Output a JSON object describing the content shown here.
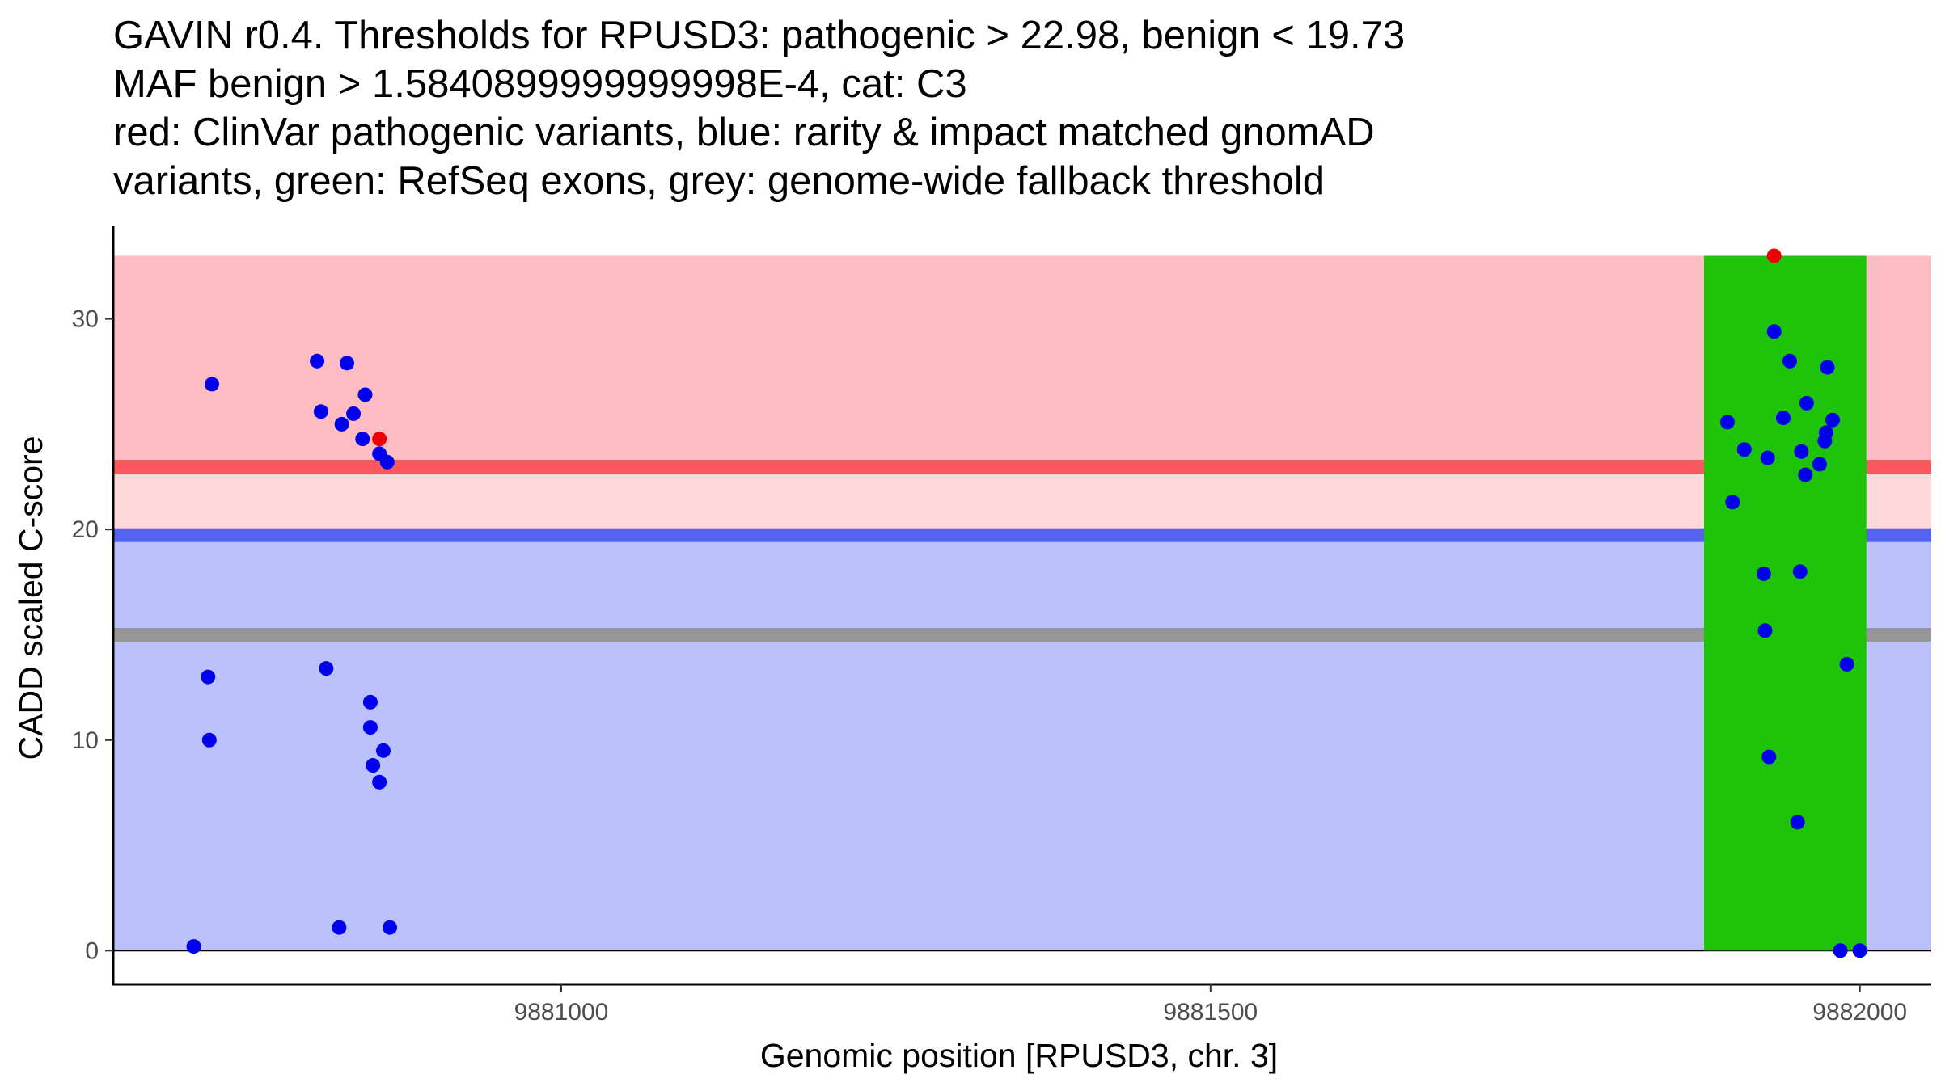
{
  "chart_data": {
    "type": "scatter",
    "title_lines": [
      "GAVIN r0.4. Thresholds for RPUSD3: pathogenic > 22.98, benign < 19.73",
      "MAF benign > 1.5840899999999998E-4, cat: C3",
      "red: ClinVar pathogenic variants, blue: rarity & impact matched gnomAD",
      "variants, green: RefSeq exons, grey: genome-wide fallback threshold"
    ],
    "xlabel": "Genomic position [RPUSD3, chr. 3]",
    "ylabel": "CADD scaled C-score",
    "xlim": [
      9880655,
      9882055
    ],
    "ylim": [
      -1.6,
      34.4
    ],
    "x_ticks": [
      {
        "value": 9881000,
        "label": "9881000"
      },
      {
        "value": 9881500,
        "label": "9881500"
      },
      {
        "value": 9882000,
        "label": "9882000"
      }
    ],
    "y_ticks": [
      {
        "value": 0,
        "label": "0"
      },
      {
        "value": 10,
        "label": "10"
      },
      {
        "value": 20,
        "label": "20"
      },
      {
        "value": 30,
        "label": "30"
      }
    ],
    "thresholds": {
      "pathogenic": 22.98,
      "benign": 19.73,
      "fallback": 15.0
    },
    "band_top": 33.0,
    "exons": [
      {
        "start": 9881880,
        "end": 9882005
      }
    ],
    "colors": {
      "pathogenic_region": "#fdbcc2",
      "middle_region": "#fed7db",
      "benign_region": "#bbc1fb",
      "pathogenic_line": "#f8575e",
      "benign_line": "#5563f0",
      "fallback_line": "#969696",
      "exon": "#1ec40a",
      "pathogenic_point": "#ee0000",
      "gnomad_point": "#0000ee"
    },
    "series": [
      {
        "name": "ClinVar pathogenic variants",
        "color": "#ee0000",
        "points": [
          {
            "x": 9880860,
            "y": 24.3
          },
          {
            "x": 9881934,
            "y": 33.0
          }
        ]
      },
      {
        "name": "rarity & impact matched gnomAD variants",
        "color": "#0000ee",
        "points": [
          {
            "x": 9880717,
            "y": 0.2
          },
          {
            "x": 9880728,
            "y": 13.0
          },
          {
            "x": 9880729,
            "y": 10.0
          },
          {
            "x": 9880731,
            "y": 26.9
          },
          {
            "x": 9880812,
            "y": 28.0
          },
          {
            "x": 9880815,
            "y": 25.6
          },
          {
            "x": 9880819,
            "y": 13.4
          },
          {
            "x": 9880829,
            "y": 1.1
          },
          {
            "x": 9880831,
            "y": 25.0
          },
          {
            "x": 9880835,
            "y": 27.9
          },
          {
            "x": 9880840,
            "y": 25.5
          },
          {
            "x": 9880847,
            "y": 24.3
          },
          {
            "x": 9880849,
            "y": 26.4
          },
          {
            "x": 9880853,
            "y": 11.8
          },
          {
            "x": 9880853,
            "y": 10.6
          },
          {
            "x": 9880855,
            "y": 8.8
          },
          {
            "x": 9880860,
            "y": 8.0
          },
          {
            "x": 9880860,
            "y": 23.6
          },
          {
            "x": 9880863,
            "y": 9.5
          },
          {
            "x": 9880866,
            "y": 23.2
          },
          {
            "x": 9880868,
            "y": 1.1
          },
          {
            "x": 9881898,
            "y": 25.1
          },
          {
            "x": 9881902,
            "y": 21.3
          },
          {
            "x": 9881911,
            "y": 23.8
          },
          {
            "x": 9881926,
            "y": 17.9
          },
          {
            "x": 9881927,
            "y": 15.2
          },
          {
            "x": 9881929,
            "y": 23.4
          },
          {
            "x": 9881930,
            "y": 9.2
          },
          {
            "x": 9881934,
            "y": 29.4
          },
          {
            "x": 9881941,
            "y": 25.3
          },
          {
            "x": 9881946,
            "y": 28.0
          },
          {
            "x": 9881952,
            "y": 6.1
          },
          {
            "x": 9881954,
            "y": 18.0
          },
          {
            "x": 9881955,
            "y": 23.7
          },
          {
            "x": 9881958,
            "y": 22.6
          },
          {
            "x": 9881959,
            "y": 26.0
          },
          {
            "x": 9881969,
            "y": 23.1
          },
          {
            "x": 9881973,
            "y": 24.2
          },
          {
            "x": 9881974,
            "y": 24.6
          },
          {
            "x": 9881975,
            "y": 27.7
          },
          {
            "x": 9881979,
            "y": 25.2
          },
          {
            "x": 9881985,
            "y": 0.0
          },
          {
            "x": 9881990,
            "y": 13.6
          },
          {
            "x": 9882000,
            "y": 0.0
          }
        ]
      }
    ]
  }
}
